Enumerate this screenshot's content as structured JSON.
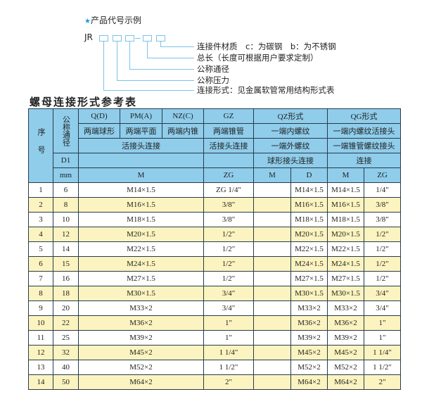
{
  "example": {
    "title": "产品代号示例",
    "prefix": "JR",
    "descriptions": [
      "连接件材质　c：为碳钢　b：为不锈钢",
      "总长（长度可根据用户要求定制）",
      "公称通径",
      "公称压力",
      "连接形式：见金属软管常用结构形式表"
    ]
  },
  "table_title": "螺母连接形式参考表",
  "header": {
    "seq": "序号",
    "dn": "公称通径",
    "d1": "D1",
    "mm": "mm",
    "types": [
      "Q(D)",
      "PM(A)",
      "NZ(C)",
      "GZ",
      "QZ形式",
      "QG形式"
    ],
    "ends": [
      "两端球形",
      "两端平面",
      "两端内锥",
      "两端锥管",
      "一端内螺纹",
      "一端内螺纹活接头"
    ],
    "conn": [
      "活接头连接",
      "活接头连接",
      "一端外螺纹",
      "一端锥管螺纹接头"
    ],
    "conn2": [
      "球形接头连接",
      "连接"
    ],
    "units": [
      "M",
      "ZG",
      "M",
      "D",
      "M",
      "ZG"
    ]
  },
  "rows": [
    {
      "no": "1",
      "dn": "6",
      "m": "M14×1.5",
      "zg": "ZG 1/4\"",
      "qzm": "",
      "qzd": "M14×1.5",
      "qgm": "M14×1.5",
      "qgzg": "1/4\""
    },
    {
      "no": "2",
      "dn": "8",
      "m": "M16×1.5",
      "zg": "3/8\"",
      "qzm": "",
      "qzd": "M16×1.5",
      "qgm": "M16×1.5",
      "qgzg": "3/8\""
    },
    {
      "no": "3",
      "dn": "10",
      "m": "M18×1.5",
      "zg": "3/8\"",
      "qzm": "",
      "qzd": "M18×1.5",
      "qgm": "M18×1.5",
      "qgzg": "3/8\""
    },
    {
      "no": "4",
      "dn": "12",
      "m": "M20×1.5",
      "zg": "1/2\"",
      "qzm": "",
      "qzd": "M20×1.5",
      "qgm": "M20×1.5",
      "qgzg": "1/2\""
    },
    {
      "no": "5",
      "dn": "14",
      "m": "M22×1.5",
      "zg": "1/2\"",
      "qzm": "",
      "qzd": "M22×1.5",
      "qgm": "M22×1.5",
      "qgzg": "1/2\""
    },
    {
      "no": "6",
      "dn": "15",
      "m": "M24×1.5",
      "zg": "1/2\"",
      "qzm": "",
      "qzd": "M24×1.5",
      "qgm": "M24×1.5",
      "qgzg": "1/2\""
    },
    {
      "no": "7",
      "dn": "16",
      "m": "M27×1.5",
      "zg": "1/2\"",
      "qzm": "",
      "qzd": "M27×1.5",
      "qgm": "M27×1.5",
      "qgzg": "1/2\""
    },
    {
      "no": "8",
      "dn": "18",
      "m": "M30×1.5",
      "zg": "3/4\"",
      "qzm": "",
      "qzd": "M30×1.5",
      "qgm": "M30×1.5",
      "qgzg": "3/4\""
    },
    {
      "no": "9",
      "dn": "20",
      "m": "M33×2",
      "zg": "3/4\"",
      "qzm": "",
      "qzd": "M33×2",
      "qgm": "M33×2",
      "qgzg": "3/4\""
    },
    {
      "no": "10",
      "dn": "22",
      "m": "M36×2",
      "zg": "1\"",
      "qzm": "",
      "qzd": "M36×2",
      "qgm": "M36×2",
      "qgzg": "1\""
    },
    {
      "no": "11",
      "dn": "25",
      "m": "M39×2",
      "zg": "1\"",
      "qzm": "",
      "qzd": "M39×2",
      "qgm": "M39×2",
      "qgzg": "1\""
    },
    {
      "no": "12",
      "dn": "32",
      "m": "M45×2",
      "zg": "1 1/4\"",
      "qzm": "",
      "qzd": "M45×2",
      "qgm": "M45×2",
      "qgzg": "1 1/4\""
    },
    {
      "no": "13",
      "dn": "40",
      "m": "M52×2",
      "zg": "1 1/2\"",
      "qzm": "",
      "qzd": "M52×2",
      "qgm": "M52×2",
      "qgzg": "1 1/2\""
    },
    {
      "no": "14",
      "dn": "50",
      "m": "M64×2",
      "zg": "2\"",
      "qzm": "",
      "qzd": "M64×2",
      "qgm": "M64×2",
      "qgzg": "2\""
    }
  ],
  "colors": {
    "header": "#8fcdeb",
    "alt_row": "#fbf4c0",
    "accent": "#1b9bd7"
  }
}
